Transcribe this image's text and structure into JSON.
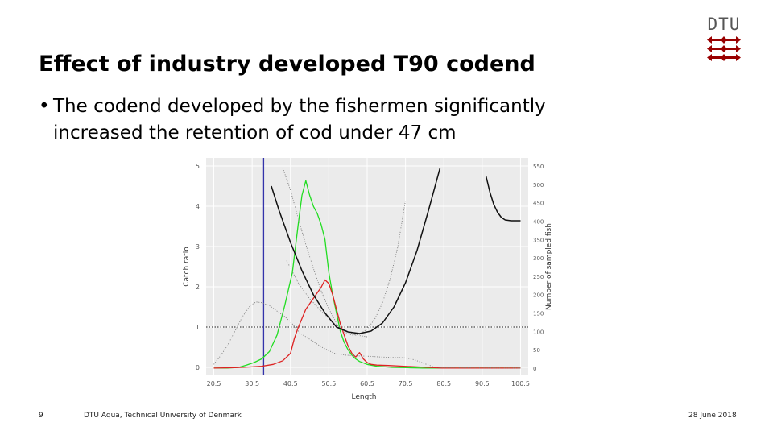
{
  "logo": {
    "text": "DTU"
  },
  "title": "Effect of industry developed T90 codend",
  "bullet": {
    "marker": "•",
    "line1": "The codend developed by the fishermen significantly",
    "line2": "increased the retention of cod under 47 cm"
  },
  "footer": {
    "page_number": "9",
    "institution": "DTU Aqua, Technical University of Denmark",
    "date": "28 June 2018"
  },
  "colors": {
    "green": "#22dd22",
    "red": "#dd2222",
    "blue_line": "#3333aa",
    "black": "#111111",
    "gray": "#777777",
    "logo_red": "#990000"
  },
  "chart_data": {
    "type": "line",
    "title": "",
    "xlabel": "Length",
    "ylabel": "Catch ratio",
    "y2label": "Number of sampled fish",
    "xlim": [
      18.5,
      102.5
    ],
    "ylim": [
      -0.2,
      5.2
    ],
    "y2lim": [
      -20,
      572
    ],
    "x_ticks": [
      "20.5",
      "30.5",
      "40.5",
      "50.5",
      "60.5",
      "70.5",
      "80.5",
      "90.5",
      "100.5"
    ],
    "y_ticks": [
      "0",
      "1",
      "2",
      "3",
      "4",
      "5"
    ],
    "y2_ticks": [
      "0",
      "50",
      "100",
      "150",
      "200",
      "250",
      "300",
      "350",
      "400",
      "450",
      "500",
      "550"
    ],
    "reference_hline": 1,
    "reference_vline": 33.5,
    "series": [
      {
        "axis": "right",
        "color": "green",
        "style": "solid",
        "width": 1.3,
        "points": [
          [
            20.5,
            0
          ],
          [
            24,
            0
          ],
          [
            27,
            2
          ],
          [
            29,
            8
          ],
          [
            31,
            15
          ],
          [
            33,
            25
          ],
          [
            35,
            45
          ],
          [
            37,
            90
          ],
          [
            39,
            170
          ],
          [
            41,
            260
          ],
          [
            42.5,
            390
          ],
          [
            43.5,
            470
          ],
          [
            44.5,
            510
          ],
          [
            45.5,
            470
          ],
          [
            46.5,
            440
          ],
          [
            47.5,
            420
          ],
          [
            48.5,
            390
          ],
          [
            49.5,
            350
          ],
          [
            50.5,
            260
          ],
          [
            51.5,
            200
          ],
          [
            52.5,
            150
          ],
          [
            53.5,
            100
          ],
          [
            54.5,
            70
          ],
          [
            55.5,
            50
          ],
          [
            56.5,
            35
          ],
          [
            57.5,
            25
          ],
          [
            58.5,
            18
          ],
          [
            60.5,
            10
          ],
          [
            63,
            5
          ],
          [
            67,
            2
          ],
          [
            71,
            1
          ],
          [
            75,
            0
          ],
          [
            100.5,
            0
          ]
        ]
      },
      {
        "axis": "right",
        "color": "red",
        "style": "solid",
        "width": 1.3,
        "points": [
          [
            20.5,
            0
          ],
          [
            26,
            1
          ],
          [
            30,
            3
          ],
          [
            33,
            5
          ],
          [
            36,
            10
          ],
          [
            38.5,
            20
          ],
          [
            40.5,
            40
          ],
          [
            41.5,
            80
          ],
          [
            42.5,
            110
          ],
          [
            44.5,
            160
          ],
          [
            46.5,
            190
          ],
          [
            48.5,
            220
          ],
          [
            49.5,
            240
          ],
          [
            50.5,
            230
          ],
          [
            51.5,
            200
          ],
          [
            52.5,
            160
          ],
          [
            53.5,
            120
          ],
          [
            54.5,
            90
          ],
          [
            55.5,
            60
          ],
          [
            56.5,
            40
          ],
          [
            57.5,
            30
          ],
          [
            58.5,
            42
          ],
          [
            59.5,
            25
          ],
          [
            60.5,
            15
          ],
          [
            61.5,
            10
          ],
          [
            63,
            8
          ],
          [
            66,
            7
          ],
          [
            68,
            6
          ],
          [
            70,
            5
          ],
          [
            74,
            3
          ],
          [
            78,
            1
          ],
          [
            80,
            0
          ],
          [
            100.5,
            0
          ]
        ]
      },
      {
        "axis": "right",
        "color": "gray",
        "style": "dotted",
        "width": 0.9,
        "points": [
          [
            20.5,
            10
          ],
          [
            22,
            30
          ],
          [
            24,
            60
          ],
          [
            26,
            100
          ],
          [
            28,
            140
          ],
          [
            30,
            170
          ],
          [
            31.5,
            180
          ],
          [
            33,
            178
          ],
          [
            35,
            170
          ],
          [
            37,
            155
          ],
          [
            39,
            140
          ],
          [
            41,
            120
          ],
          [
            43,
            95
          ],
          [
            46,
            75
          ],
          [
            49,
            55
          ],
          [
            52,
            40
          ],
          [
            55,
            35
          ],
          [
            58,
            33
          ],
          [
            61,
            32
          ],
          [
            64,
            30
          ],
          [
            67,
            29
          ],
          [
            70,
            28
          ],
          [
            72,
            25
          ],
          [
            74,
            18
          ],
          [
            76,
            10
          ],
          [
            78,
            3
          ],
          [
            80,
            1
          ],
          [
            100.5,
            0
          ]
        ]
      },
      {
        "axis": "left",
        "color": "gray",
        "style": "dotted",
        "width": 0.9,
        "points": [
          [
            38.5,
            4.95
          ],
          [
            40.5,
            4.4
          ],
          [
            42.5,
            3.7
          ],
          [
            44.5,
            3.05
          ],
          [
            46.5,
            2.45
          ],
          [
            48.5,
            1.9
          ],
          [
            50.5,
            1.45
          ],
          [
            52.5,
            1.1
          ],
          [
            54.5,
            0.88
          ],
          [
            56.5,
            0.8
          ],
          [
            58.5,
            0.82
          ],
          [
            60.5,
            0.95
          ],
          [
            62.5,
            1.2
          ],
          [
            64.5,
            1.6
          ],
          [
            66.5,
            2.2
          ],
          [
            68.5,
            3.0
          ],
          [
            70.5,
            4.15
          ]
        ]
      },
      {
        "axis": "left",
        "color": "gray",
        "style": "dotted",
        "width": 0.9,
        "points": [
          [
            39.5,
            2.65
          ],
          [
            42.5,
            2.1
          ],
          [
            45.5,
            1.7
          ],
          [
            48.5,
            1.4
          ],
          [
            51.5,
            1.12
          ],
          [
            54.5,
            0.92
          ],
          [
            57.5,
            0.8
          ],
          [
            60.5,
            0.76
          ]
        ]
      },
      {
        "axis": "left",
        "color": "black",
        "style": "solid",
        "width": 1.5,
        "points": [
          [
            35.5,
            4.5
          ],
          [
            37.5,
            3.9
          ],
          [
            40.5,
            3.1
          ],
          [
            43.5,
            2.4
          ],
          [
            46.5,
            1.8
          ],
          [
            49.5,
            1.35
          ],
          [
            52.5,
            1.0
          ],
          [
            55.5,
            0.88
          ],
          [
            58.5,
            0.84
          ],
          [
            61.5,
            0.9
          ],
          [
            64.5,
            1.1
          ],
          [
            67.5,
            1.5
          ],
          [
            70.5,
            2.1
          ],
          [
            73.5,
            2.9
          ],
          [
            76.5,
            3.9
          ],
          [
            79.5,
            4.95
          ]
        ]
      },
      {
        "axis": "left",
        "color": "black",
        "style": "solid",
        "width": 1.5,
        "points": [
          [
            91.5,
            4.75
          ],
          [
            92.5,
            4.35
          ],
          [
            93.5,
            4.05
          ],
          [
            94.5,
            3.85
          ],
          [
            95.5,
            3.72
          ],
          [
            96.5,
            3.66
          ],
          [
            98,
            3.64
          ],
          [
            100.5,
            3.64
          ]
        ]
      }
    ]
  }
}
